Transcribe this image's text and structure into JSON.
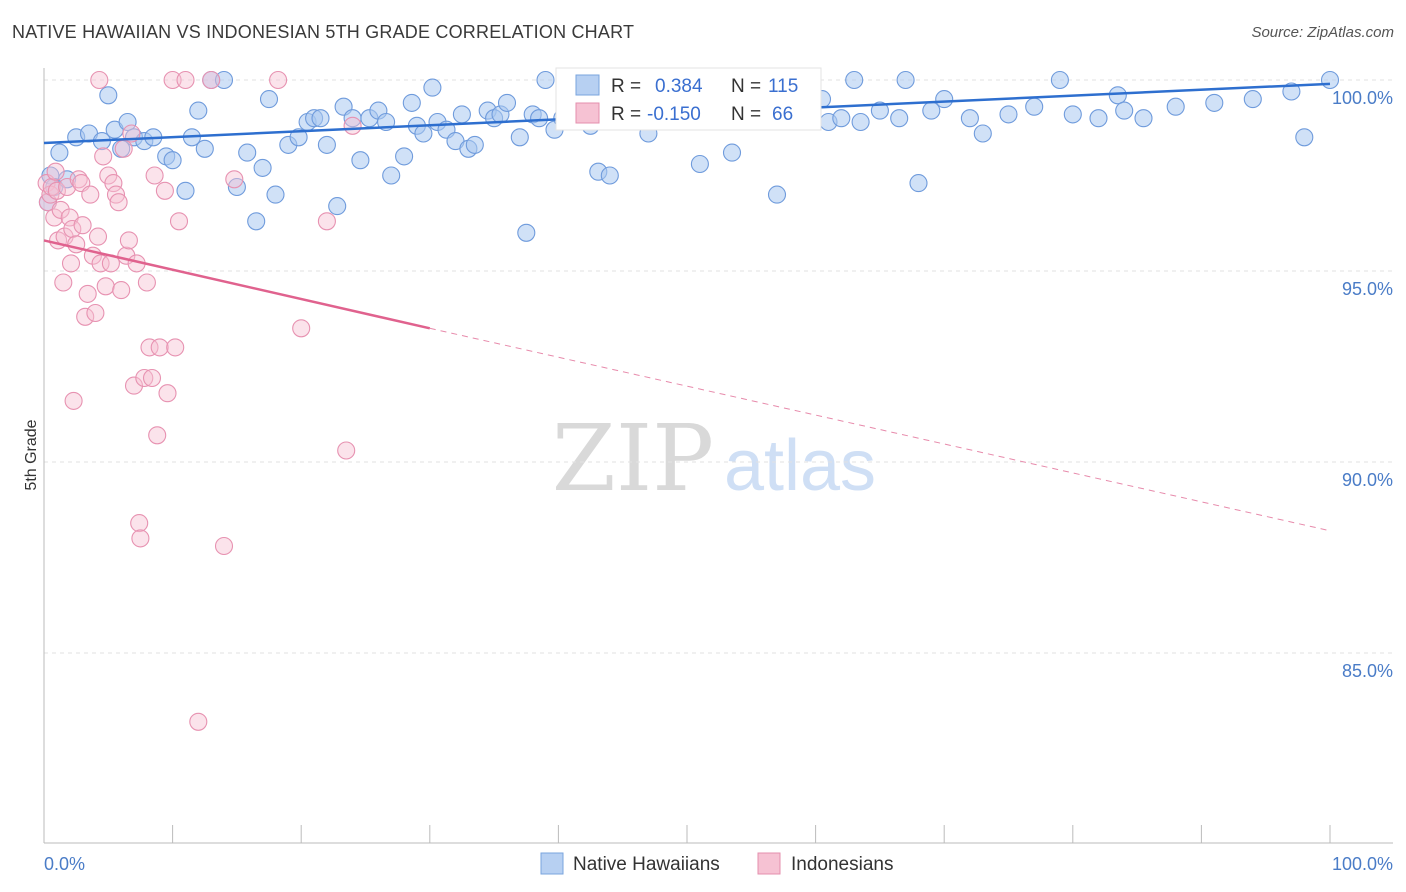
{
  "header": {
    "title": "NATIVE HAWAIIAN VS INDONESIAN 5TH GRADE CORRELATION CHART",
    "source": "Source: ZipAtlas.com"
  },
  "watermark": {
    "zip": "ZIP",
    "atlas": "atlas"
  },
  "colors": {
    "blue": "#5b8fd8",
    "blue_fill": "#aac8f0",
    "blue_line": "#2e6fcf",
    "pink": "#e98bab",
    "pink_fill": "#f6c2d3",
    "pink_line": "#e0628e",
    "tick_text": "#4a7cc7",
    "grid": "#dddddd"
  },
  "legend": {
    "rows": [
      {
        "r_label": "R =",
        "r_value": "0.384",
        "n_label": "N =",
        "n_value": "115"
      },
      {
        "r_label": "R =",
        "r_value": "-0.150",
        "n_label": "N =",
        "n_value": "66"
      }
    ]
  },
  "bottom_legend": {
    "series1": "Native Hawaiians",
    "series2": "Indonesians"
  },
  "chart_data": {
    "type": "scatter",
    "title": "NATIVE HAWAIIAN VS INDONESIAN 5TH GRADE CORRELATION CHART",
    "xlabel": "",
    "ylabel": "5th Grade",
    "x_ticks": [
      "0.0%",
      "100.0%"
    ],
    "y_ticks": [
      "100.0%",
      "95.0%",
      "90.0%",
      "85.0%"
    ],
    "y_tick_values": [
      100,
      95,
      90,
      85
    ],
    "xlim": [
      0,
      100
    ],
    "ylim": [
      80.5,
      100.8
    ],
    "grid": true,
    "legend_placement": "top-center",
    "series": [
      {
        "name": "Native Hawaiians",
        "color": "#5b8fd8",
        "regression": {
          "x": [
            0,
            100
          ],
          "y": [
            98.35,
            99.9
          ]
        },
        "points": [
          [
            0.5,
            97.5
          ],
          [
            0.8,
            97.2
          ],
          [
            1.2,
            98.1
          ],
          [
            1.8,
            97.4
          ],
          [
            2.5,
            98.5
          ],
          [
            3.5,
            98.6
          ],
          [
            4.5,
            98.4
          ],
          [
            5.0,
            99.6
          ],
          [
            5.5,
            98.7
          ],
          [
            6.0,
            98.2
          ],
          [
            6.5,
            98.9
          ],
          [
            7.0,
            98.5
          ],
          [
            7.8,
            98.4
          ],
          [
            8.5,
            98.5
          ],
          [
            9.5,
            98.0
          ],
          [
            10.0,
            97.9
          ],
          [
            11.0,
            97.1
          ],
          [
            11.5,
            98.5
          ],
          [
            12.0,
            99.2
          ],
          [
            12.5,
            98.2
          ],
          [
            13.0,
            100.0
          ],
          [
            14.0,
            100.0
          ],
          [
            15.0,
            97.2
          ],
          [
            15.8,
            98.1
          ],
          [
            16.5,
            96.3
          ],
          [
            17.0,
            97.7
          ],
          [
            17.5,
            99.5
          ],
          [
            18.0,
            97.0
          ],
          [
            19.0,
            98.3
          ],
          [
            19.8,
            98.5
          ],
          [
            20.5,
            98.9
          ],
          [
            21.0,
            99.0
          ],
          [
            21.5,
            99.0
          ],
          [
            22.0,
            98.3
          ],
          [
            22.8,
            96.7
          ],
          [
            23.3,
            99.3
          ],
          [
            24.0,
            99.0
          ],
          [
            24.6,
            97.9
          ],
          [
            25.3,
            99.0
          ],
          [
            26.0,
            99.2
          ],
          [
            26.6,
            98.9
          ],
          [
            27.0,
            97.5
          ],
          [
            28.0,
            98.0
          ],
          [
            28.6,
            99.4
          ],
          [
            29.0,
            98.8
          ],
          [
            29.5,
            98.6
          ],
          [
            30.2,
            99.8
          ],
          [
            30.6,
            98.9
          ],
          [
            31.3,
            98.7
          ],
          [
            32.0,
            98.4
          ],
          [
            32.5,
            99.1
          ],
          [
            33.0,
            98.2
          ],
          [
            33.5,
            98.3
          ],
          [
            34.5,
            99.2
          ],
          [
            35.0,
            99.0
          ],
          [
            35.5,
            99.1
          ],
          [
            36.0,
            99.4
          ],
          [
            37.0,
            98.5
          ],
          [
            37.5,
            96.0
          ],
          [
            38.0,
            99.1
          ],
          [
            38.5,
            99.0
          ],
          [
            39.0,
            100.0
          ],
          [
            39.7,
            98.7
          ],
          [
            40.3,
            99.0
          ],
          [
            41.0,
            99.1
          ],
          [
            41.6,
            99.0
          ],
          [
            42.5,
            98.8
          ],
          [
            43.1,
            97.6
          ],
          [
            44.0,
            97.5
          ],
          [
            44.5,
            99.0
          ],
          [
            45.3,
            99.7
          ],
          [
            46.0,
            99.3
          ],
          [
            47.0,
            98.6
          ],
          [
            47.5,
            99.5
          ],
          [
            48.5,
            99.9
          ],
          [
            49.0,
            99.0
          ],
          [
            50.0,
            99.4
          ],
          [
            51.0,
            97.8
          ],
          [
            51.5,
            99.2
          ],
          [
            52.0,
            99.6
          ],
          [
            53.0,
            99.0
          ],
          [
            53.5,
            98.1
          ],
          [
            55.0,
            99.5
          ],
          [
            56.5,
            99.2
          ],
          [
            57.0,
            97.0
          ],
          [
            58.0,
            99.4
          ],
          [
            59.0,
            99.0
          ],
          [
            60.5,
            99.5
          ],
          [
            61.0,
            98.9
          ],
          [
            62.0,
            99.0
          ],
          [
            63.0,
            100.0
          ],
          [
            63.5,
            98.9
          ],
          [
            65.0,
            99.2
          ],
          [
            66.5,
            99.0
          ],
          [
            67.0,
            100.0
          ],
          [
            68.0,
            97.3
          ],
          [
            69.0,
            99.2
          ],
          [
            70.0,
            99.5
          ],
          [
            72.0,
            99.0
          ],
          [
            73.0,
            98.6
          ],
          [
            75.0,
            99.1
          ],
          [
            77.0,
            99.3
          ],
          [
            79.0,
            100.0
          ],
          [
            80.0,
            99.1
          ],
          [
            82.0,
            99.0
          ],
          [
            83.5,
            99.6
          ],
          [
            84.0,
            99.2
          ],
          [
            85.5,
            99.0
          ],
          [
            88.0,
            99.3
          ],
          [
            91.0,
            99.4
          ],
          [
            94.0,
            99.5
          ],
          [
            97.0,
            99.7
          ],
          [
            98.0,
            98.5
          ],
          [
            100.0,
            100.0
          ],
          [
            0.3,
            96.8
          ]
        ]
      },
      {
        "name": "Indonesians",
        "color": "#e98bab",
        "regression": {
          "x": [
            0,
            30
          ],
          "y": [
            95.8,
            93.5
          ],
          "x_dashed": [
            30,
            100
          ],
          "y_dashed": [
            93.5,
            88.2
          ]
        },
        "points": [
          [
            0.2,
            97.3
          ],
          [
            0.3,
            96.8
          ],
          [
            0.5,
            97.0
          ],
          [
            0.6,
            97.2
          ],
          [
            0.8,
            96.4
          ],
          [
            1.0,
            97.1
          ],
          [
            1.1,
            95.8
          ],
          [
            1.3,
            96.6
          ],
          [
            1.5,
            94.7
          ],
          [
            1.6,
            95.9
          ],
          [
            1.8,
            97.2
          ],
          [
            2.0,
            96.4
          ],
          [
            2.1,
            95.2
          ],
          [
            2.2,
            96.1
          ],
          [
            2.5,
            95.7
          ],
          [
            2.7,
            97.4
          ],
          [
            2.9,
            97.3
          ],
          [
            3.0,
            96.2
          ],
          [
            3.2,
            93.8
          ],
          [
            3.4,
            94.4
          ],
          [
            3.6,
            97.0
          ],
          [
            3.8,
            95.4
          ],
          [
            4.0,
            93.9
          ],
          [
            4.2,
            95.9
          ],
          [
            4.4,
            95.2
          ],
          [
            4.6,
            98.0
          ],
          [
            4.8,
            94.6
          ],
          [
            5.0,
            97.5
          ],
          [
            5.2,
            95.2
          ],
          [
            5.4,
            97.3
          ],
          [
            5.6,
            97.0
          ],
          [
            5.8,
            96.8
          ],
          [
            6.0,
            94.5
          ],
          [
            6.2,
            98.2
          ],
          [
            6.4,
            95.4
          ],
          [
            6.6,
            95.8
          ],
          [
            6.8,
            98.6
          ],
          [
            7.0,
            92.0
          ],
          [
            7.2,
            95.2
          ],
          [
            7.4,
            88.4
          ],
          [
            7.5,
            88.0
          ],
          [
            7.8,
            92.2
          ],
          [
            8.0,
            94.7
          ],
          [
            8.2,
            93.0
          ],
          [
            8.4,
            92.2
          ],
          [
            8.6,
            97.5
          ],
          [
            8.8,
            90.7
          ],
          [
            9.0,
            93.0
          ],
          [
            9.4,
            97.1
          ],
          [
            9.6,
            91.8
          ],
          [
            10.0,
            100.0
          ],
          [
            10.2,
            93.0
          ],
          [
            10.5,
            96.3
          ],
          [
            11.0,
            100.0
          ],
          [
            12.0,
            83.2
          ],
          [
            13.0,
            100.0
          ],
          [
            14.0,
            87.8
          ],
          [
            14.8,
            97.4
          ],
          [
            18.2,
            100.0
          ],
          [
            20.0,
            93.5
          ],
          [
            22.0,
            96.3
          ],
          [
            23.5,
            90.3
          ],
          [
            24.0,
            98.8
          ],
          [
            2.3,
            91.6
          ],
          [
            0.9,
            97.6
          ],
          [
            4.3,
            100.0
          ]
        ]
      }
    ]
  }
}
